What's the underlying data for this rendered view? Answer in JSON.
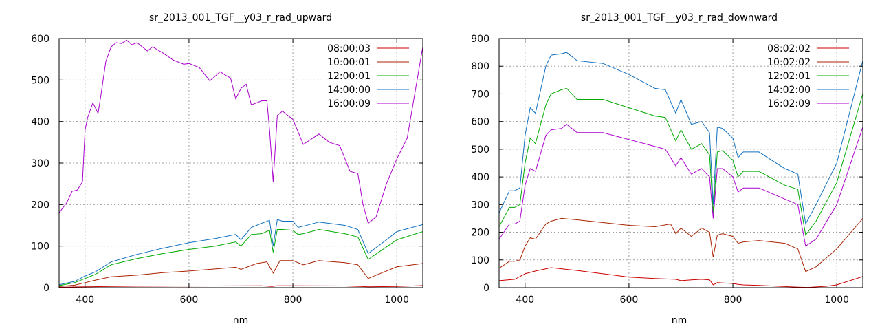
{
  "chart_data": [
    {
      "type": "line",
      "title": "sr_2013_001_TGF__y03_r_rad_upward",
      "xlabel": "nm",
      "ylabel": "",
      "xlim": [
        350,
        1050
      ],
      "ylim": [
        0,
        600
      ],
      "xticks": [
        400,
        600,
        800,
        1000
      ],
      "yticks": [
        0,
        100,
        200,
        300,
        400,
        500,
        600
      ],
      "grid": true,
      "legend": "top-right",
      "series": [
        {
          "name": "08:00:03",
          "color": "#cc0000",
          "x": [
            350,
            400,
            450,
            500,
            550,
            600,
            650,
            700,
            740,
            760,
            770,
            800,
            850,
            900,
            930,
            945,
            1000,
            1050
          ],
          "y": [
            1,
            2,
            3,
            3.5,
            3.8,
            4,
            4.2,
            4.3,
            4.5,
            3,
            4.5,
            4.4,
            4.3,
            4.2,
            3,
            2,
            3,
            5
          ]
        },
        {
          "name": "10:00:01",
          "color": "#aa2200",
          "x": [
            350,
            380,
            400,
            420,
            450,
            500,
            550,
            600,
            650,
            690,
            700,
            730,
            750,
            762,
            775,
            800,
            820,
            850,
            900,
            925,
            945,
            970,
            1000,
            1050
          ],
          "y": [
            3,
            6,
            12,
            18,
            26,
            30,
            36,
            40,
            45,
            49,
            44,
            58,
            62,
            35,
            65,
            65,
            55,
            65,
            60,
            55,
            22,
            35,
            50,
            58
          ]
        },
        {
          "name": "12:00:01",
          "color": "#00aa00",
          "x": [
            350,
            380,
            400,
            420,
            450,
            500,
            550,
            600,
            650,
            690,
            700,
            720,
            740,
            755,
            762,
            770,
            780,
            800,
            810,
            820,
            850,
            900,
            925,
            945,
            980,
            1000,
            1050
          ],
          "y": [
            5,
            12,
            22,
            32,
            55,
            70,
            82,
            92,
            100,
            110,
            100,
            128,
            130,
            138,
            85,
            140,
            140,
            138,
            128,
            130,
            140,
            130,
            122,
            68,
            98,
            115,
            135
          ]
        },
        {
          "name": "14:00:00",
          "color": "#1070c0",
          "x": [
            350,
            380,
            400,
            420,
            450,
            500,
            550,
            600,
            650,
            690,
            700,
            720,
            740,
            755,
            762,
            770,
            780,
            800,
            810,
            820,
            850,
            900,
            925,
            945,
            980,
            1000,
            1050
          ],
          "y": [
            7,
            15,
            28,
            38,
            62,
            80,
            95,
            108,
            118,
            128,
            115,
            145,
            155,
            162,
            100,
            164,
            160,
            160,
            145,
            148,
            158,
            150,
            140,
            82,
            115,
            135,
            152
          ]
        },
        {
          "name": "16:00:09",
          "color": "#aa00cc",
          "x": [
            350,
            365,
            375,
            385,
            395,
            400,
            405,
            415,
            425,
            430,
            440,
            450,
            460,
            470,
            480,
            490,
            500,
            520,
            530,
            550,
            570,
            590,
            600,
            620,
            640,
            660,
            670,
            680,
            690,
            700,
            710,
            720,
            740,
            750,
            755,
            762,
            770,
            780,
            800,
            820,
            850,
            870,
            890,
            910,
            925,
            935,
            945,
            960,
            980,
            1000,
            1020,
            1050
          ],
          "y": [
            180,
            205,
            232,
            235,
            255,
            380,
            410,
            445,
            420,
            460,
            545,
            580,
            590,
            588,
            596,
            585,
            590,
            570,
            580,
            565,
            548,
            538,
            540,
            530,
            498,
            520,
            512,
            505,
            455,
            480,
            490,
            440,
            450,
            450,
            380,
            255,
            415,
            425,
            405,
            345,
            370,
            350,
            342,
            280,
            275,
            200,
            155,
            170,
            250,
            310,
            360,
            580
          ]
        }
      ]
    },
    {
      "type": "line",
      "title": "sr_2013_001_TGF__y03_r_rad_downward",
      "xlabel": "nm",
      "ylabel": "",
      "xlim": [
        350,
        1050
      ],
      "ylim": [
        0,
        900
      ],
      "xticks": [
        400,
        600,
        800,
        1000
      ],
      "yticks": [
        0,
        100,
        200,
        300,
        400,
        500,
        600,
        700,
        800,
        900
      ],
      "grid": true,
      "legend": "top-right",
      "series": [
        {
          "name": "08:02:02",
          "color": "#cc0000",
          "x": [
            350,
            380,
            400,
            420,
            450,
            500,
            550,
            600,
            650,
            690,
            700,
            720,
            740,
            755,
            762,
            770,
            800,
            810,
            820,
            850,
            900,
            925,
            945,
            980,
            1000,
            1050
          ],
          "y": [
            25,
            30,
            50,
            60,
            72,
            62,
            50,
            38,
            33,
            30,
            25,
            28,
            30,
            28,
            10,
            18,
            15,
            12,
            10,
            8,
            4,
            2,
            1,
            5,
            10,
            40
          ]
        },
        {
          "name": "10:02:02",
          "color": "#aa2200",
          "x": [
            350,
            370,
            380,
            390,
            400,
            410,
            420,
            440,
            450,
            470,
            500,
            550,
            600,
            650,
            680,
            690,
            700,
            720,
            740,
            755,
            762,
            770,
            780,
            800,
            810,
            820,
            850,
            900,
            925,
            940,
            960,
            1000,
            1050
          ],
          "y": [
            70,
            95,
            95,
            100,
            150,
            180,
            175,
            230,
            240,
            250,
            245,
            235,
            225,
            220,
            230,
            195,
            215,
            185,
            215,
            200,
            110,
            190,
            195,
            185,
            160,
            165,
            170,
            160,
            140,
            58,
            75,
            140,
            250
          ]
        },
        {
          "name": "12:02:01",
          "color": "#00aa00",
          "x": [
            350,
            370,
            380,
            390,
            400,
            410,
            420,
            440,
            450,
            470,
            480,
            500,
            550,
            600,
            650,
            670,
            690,
            700,
            720,
            740,
            755,
            762,
            770,
            780,
            800,
            810,
            820,
            850,
            900,
            925,
            940,
            960,
            1000,
            1050
          ],
          "y": [
            220,
            290,
            290,
            300,
            450,
            540,
            520,
            660,
            700,
            715,
            720,
            680,
            680,
            650,
            620,
            615,
            530,
            570,
            500,
            520,
            480,
            270,
            490,
            495,
            460,
            400,
            420,
            420,
            370,
            355,
            190,
            240,
            380,
            700
          ]
        },
        {
          "name": "14:02:00",
          "color": "#1070c0",
          "x": [
            350,
            370,
            380,
            390,
            400,
            410,
            420,
            440,
            450,
            470,
            480,
            500,
            550,
            600,
            650,
            670,
            690,
            700,
            720,
            740,
            755,
            762,
            770,
            780,
            800,
            810,
            820,
            850,
            900,
            925,
            940,
            960,
            1000,
            1050
          ],
          "y": [
            270,
            350,
            350,
            360,
            550,
            650,
            630,
            800,
            840,
            845,
            850,
            820,
            810,
            770,
            720,
            715,
            630,
            680,
            590,
            600,
            560,
            300,
            580,
            575,
            540,
            470,
            490,
            490,
            430,
            410,
            230,
            300,
            450,
            820
          ]
        },
        {
          "name": "16:02:09",
          "color": "#aa00cc",
          "x": [
            350,
            370,
            380,
            390,
            400,
            410,
            420,
            440,
            450,
            470,
            480,
            500,
            550,
            600,
            650,
            670,
            690,
            700,
            720,
            740,
            755,
            762,
            770,
            780,
            800,
            810,
            820,
            850,
            900,
            925,
            940,
            960,
            1000,
            1050
          ],
          "y": [
            175,
            230,
            230,
            240,
            370,
            430,
            420,
            550,
            570,
            575,
            590,
            560,
            560,
            535,
            510,
            500,
            440,
            470,
            410,
            430,
            400,
            250,
            430,
            430,
            400,
            345,
            360,
            360,
            320,
            300,
            150,
            175,
            300,
            580
          ]
        }
      ]
    }
  ]
}
